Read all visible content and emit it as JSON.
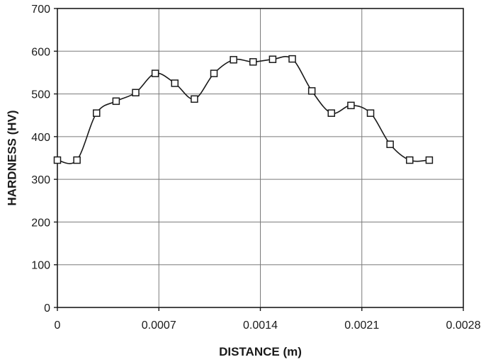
{
  "chart_data": {
    "type": "line",
    "title": "",
    "xlabel": "DISTANCE (m)",
    "ylabel": "HARDNESS (HV)",
    "xlim": [
      0,
      0.0028
    ],
    "ylim": [
      0,
      700
    ],
    "x_ticks": [
      0,
      0.0007,
      0.0014,
      0.0021,
      0.0028
    ],
    "x_tick_labels": [
      "0",
      "0.0007",
      "0.0014",
      "0.0021",
      "0.0028"
    ],
    "y_ticks": [
      0,
      100,
      200,
      300,
      400,
      500,
      600,
      700
    ],
    "y_tick_labels": [
      "0",
      "100",
      "200",
      "300",
      "400",
      "500",
      "600",
      "700"
    ],
    "grid": true,
    "smooth": true,
    "marker": "open-square",
    "line_color": "#1a1a1a",
    "series": [
      {
        "x": [
          0,
          0.000135,
          0.00027,
          0.000405,
          0.00054,
          0.000675,
          0.00081,
          0.000945,
          0.00108,
          0.001215,
          0.00135,
          0.001485,
          0.00162,
          0.001755,
          0.00189,
          0.002025,
          0.00216,
          0.002295,
          0.00243,
          0.002565
        ],
        "y": [
          345,
          345,
          455,
          483,
          503,
          548,
          525,
          488,
          548,
          580,
          575,
          581,
          582,
          507,
          455,
          473,
          455,
          382,
          345,
          345
        ]
      }
    ]
  }
}
